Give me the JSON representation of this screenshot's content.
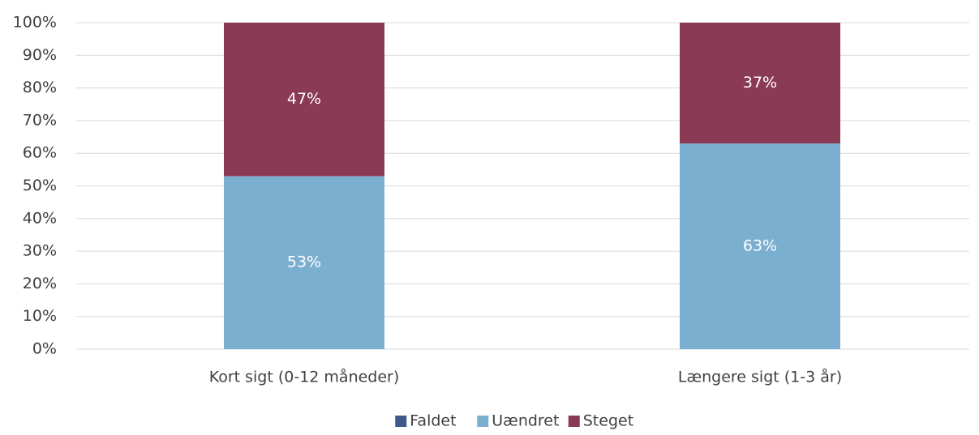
{
  "chart_data": {
    "type": "stacked_bar",
    "categories": [
      "Kort sigt (0-12 måneder)",
      "Længere sigt (1-3 år)"
    ],
    "series": [
      {
        "name": "Faldet",
        "color": "#3f5a8a",
        "values": [
          0,
          0
        ]
      },
      {
        "name": "Uændret",
        "color": "#7aafd0",
        "values": [
          53,
          63
        ],
        "value_labels": [
          "53%",
          "63%"
        ]
      },
      {
        "name": "Steget",
        "color": "#8b3a55",
        "values": [
          47,
          37
        ],
        "value_labels": [
          "47%",
          "37%"
        ]
      }
    ],
    "ylim": [
      0,
      100
    ],
    "yticks": [
      {
        "value": 0,
        "label": "0%"
      },
      {
        "value": 10,
        "label": "10%"
      },
      {
        "value": 20,
        "label": "20%"
      },
      {
        "value": 30,
        "label": "30%"
      },
      {
        "value": 40,
        "label": "40%"
      },
      {
        "value": 50,
        "label": "50%"
      },
      {
        "value": 60,
        "label": "60%"
      },
      {
        "value": 70,
        "label": "70%"
      },
      {
        "value": 80,
        "label": "80%"
      },
      {
        "value": 90,
        "label": "90%"
      },
      {
        "value": 100,
        "label": "100%"
      }
    ],
    "grid": true,
    "legend": "bottom"
  }
}
